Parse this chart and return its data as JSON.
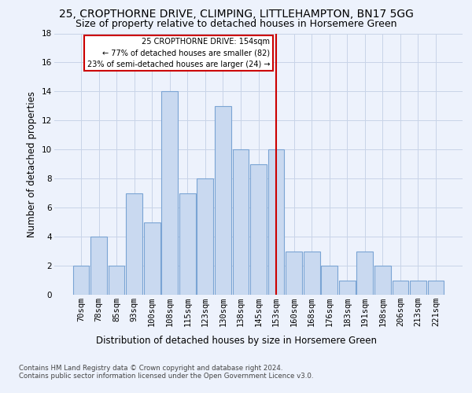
{
  "title": "25, CROPTHORNE DRIVE, CLIMPING, LITTLEHAMPTON, BN17 5GG",
  "subtitle": "Size of property relative to detached houses in Horsemere Green",
  "xlabel_bottom": "Distribution of detached houses by size in Horsemere Green",
  "ylabel": "Number of detached properties",
  "footnote": "Contains HM Land Registry data © Crown copyright and database right 2024.\nContains public sector information licensed under the Open Government Licence v3.0.",
  "categories": [
    "70sqm",
    "78sqm",
    "85sqm",
    "93sqm",
    "100sqm",
    "108sqm",
    "115sqm",
    "123sqm",
    "130sqm",
    "138sqm",
    "145sqm",
    "153sqm",
    "160sqm",
    "168sqm",
    "176sqm",
    "183sqm",
    "191sqm",
    "198sqm",
    "206sqm",
    "213sqm",
    "221sqm"
  ],
  "values": [
    2,
    4,
    2,
    7,
    5,
    14,
    7,
    8,
    13,
    10,
    9,
    10,
    3,
    3,
    2,
    1,
    3,
    2,
    1,
    1,
    1
  ],
  "bar_color": "#c9d9f0",
  "bar_edge_color": "#7aa4d4",
  "subject_cat": "153sqm",
  "subject_line_label": "25 CROPTHORNE DRIVE: 154sqm",
  "annotation_line1": "← 77% of detached houses are smaller (82)",
  "annotation_line2": "23% of semi-detached houses are larger (24) →",
  "ylim": [
    0,
    18
  ],
  "yticks": [
    0,
    2,
    4,
    6,
    8,
    10,
    12,
    14,
    16,
    18
  ],
  "bg_color": "#edf2fc",
  "grid_color": "#c8d4e8",
  "annotation_box_edge_color": "#cc0000",
  "subject_vline_color": "#cc0000",
  "title_fontsize": 10,
  "subtitle_fontsize": 9,
  "axis_label_fontsize": 8.5,
  "tick_fontsize": 7.5,
  "footnote_fontsize": 6.2
}
